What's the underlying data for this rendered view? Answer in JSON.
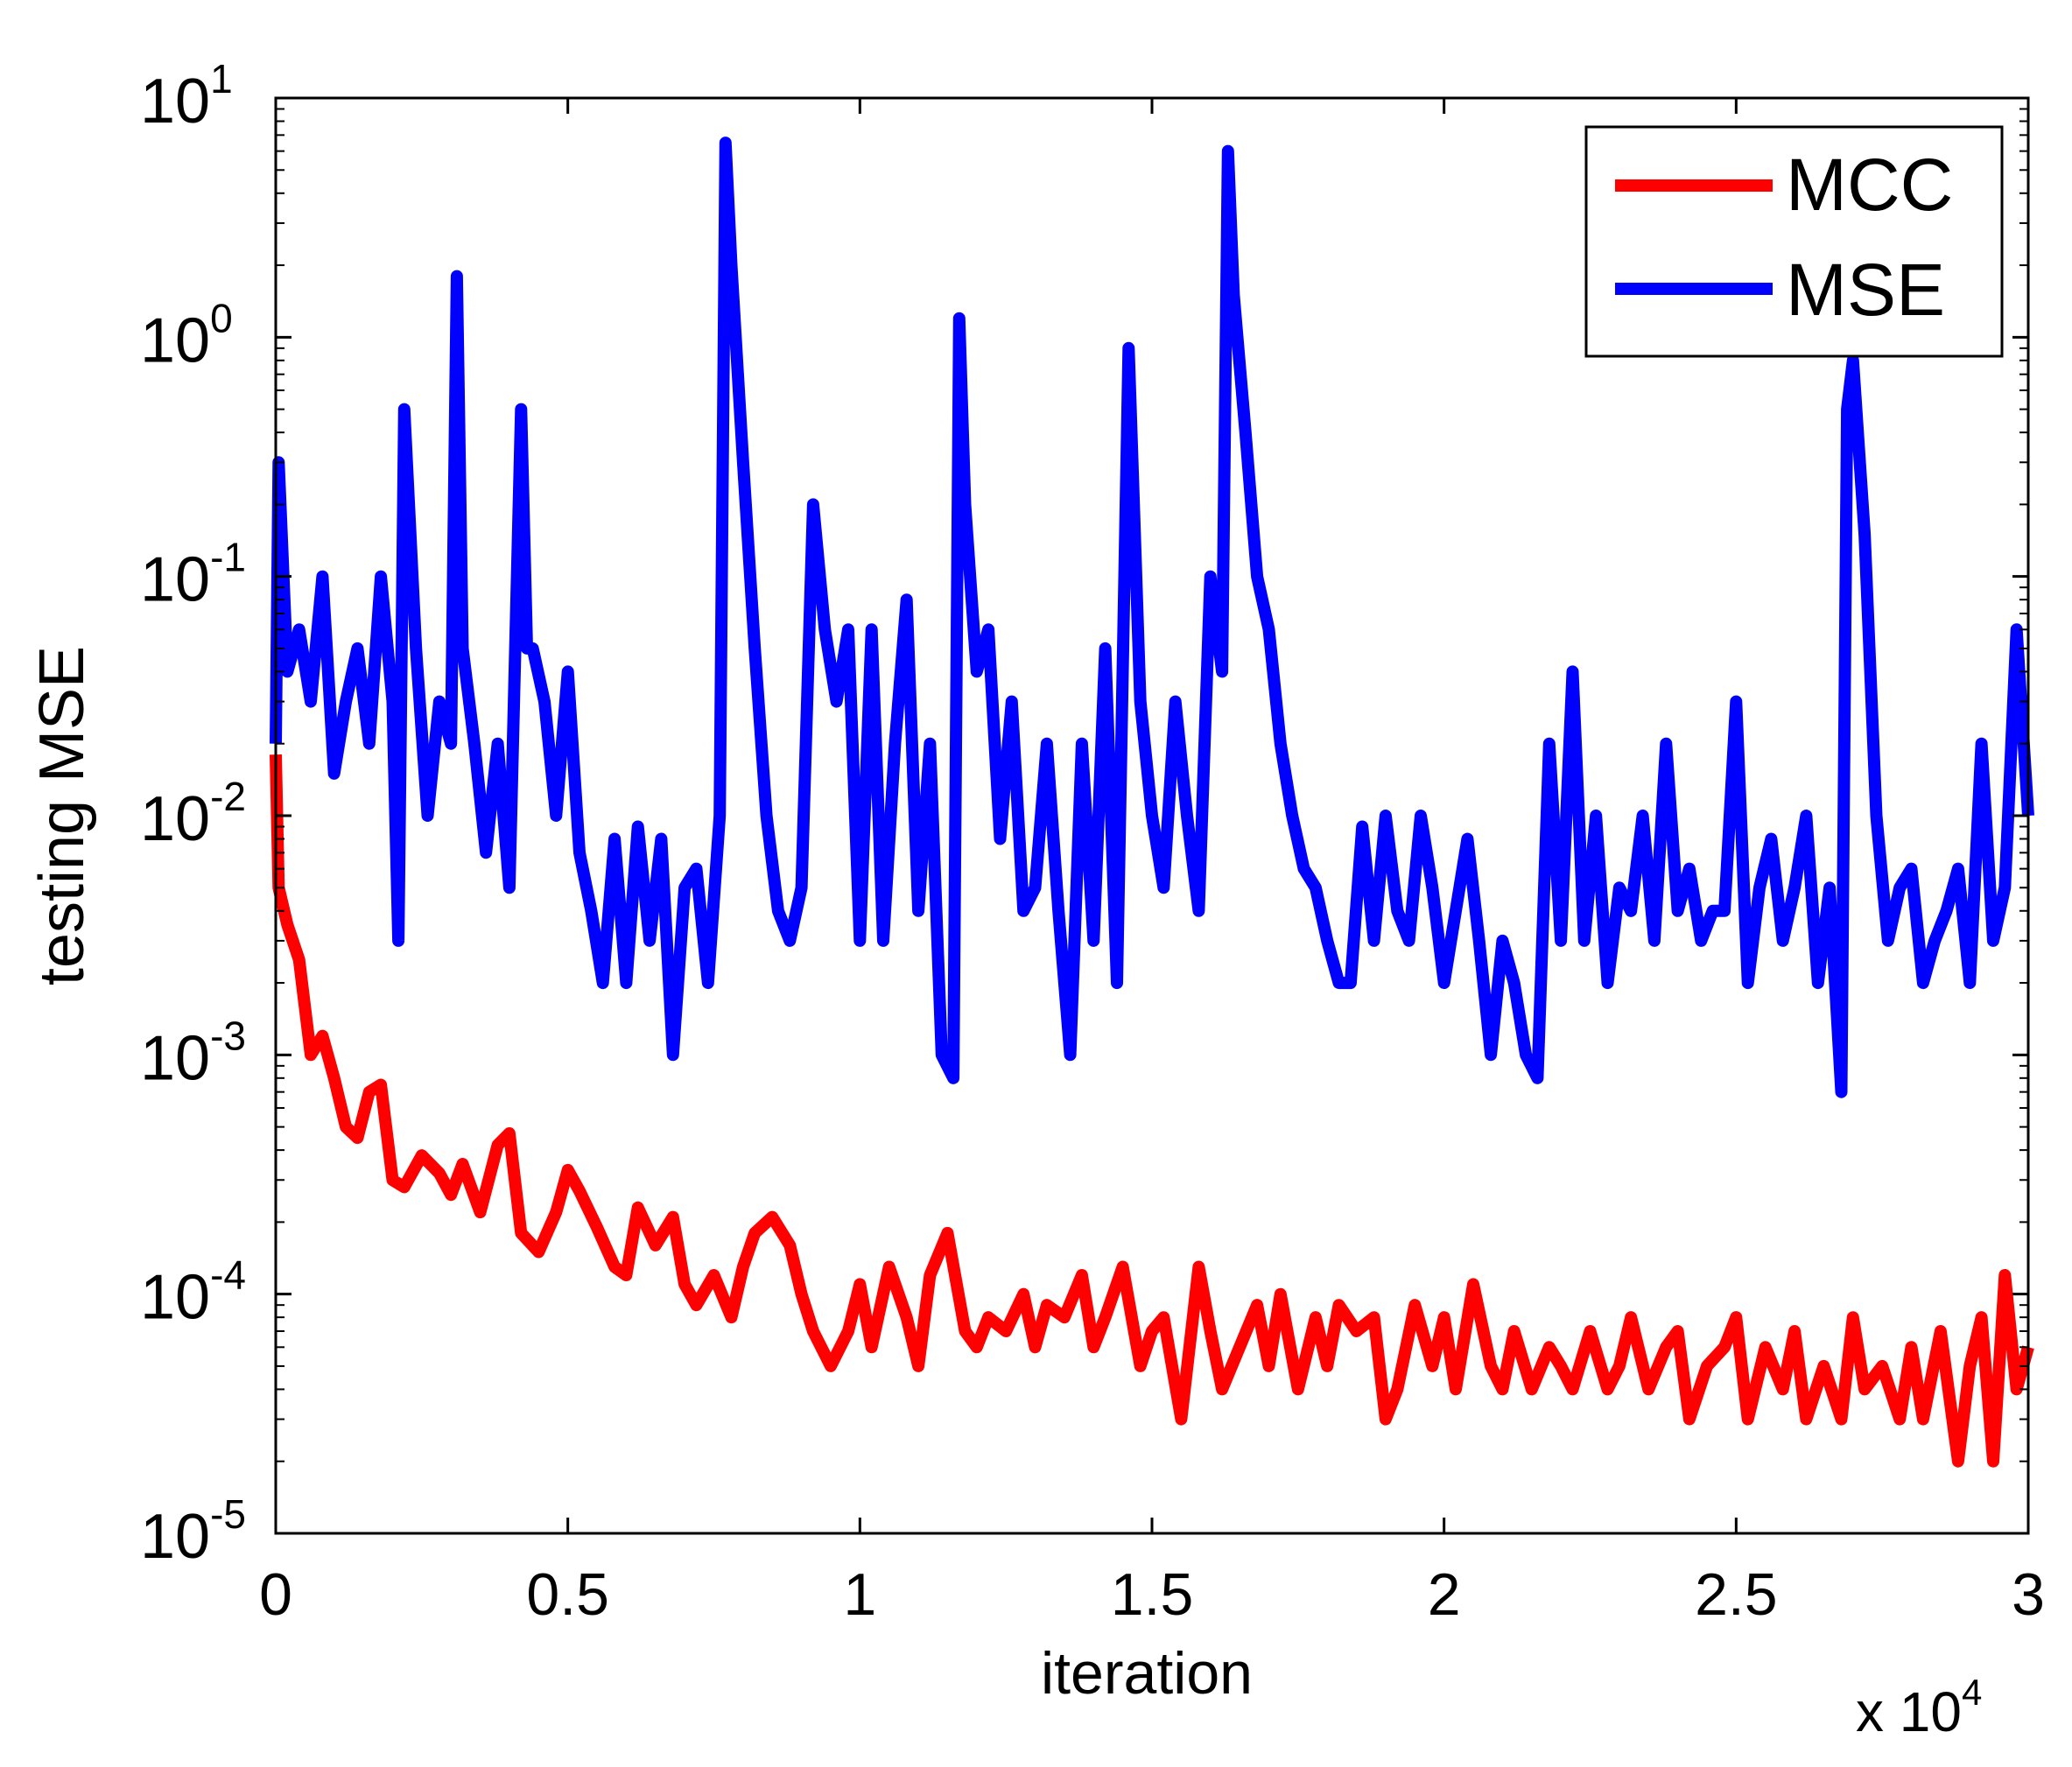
{
  "chart_data": {
    "type": "line",
    "title": "",
    "xlabel": "iteration",
    "ylabel": "testing MSE",
    "x_multiplier": "x 10",
    "x_multiplier_exp": "4",
    "xlim": [
      0,
      3
    ],
    "ylim_log10": [
      -5,
      1
    ],
    "yscale": "log",
    "grid": false,
    "legend_position": "top-right",
    "x_ticks": [
      {
        "value": 0,
        "label": "0"
      },
      {
        "value": 0.5,
        "label": "0.5"
      },
      {
        "value": 1,
        "label": "1"
      },
      {
        "value": 1.5,
        "label": "1.5"
      },
      {
        "value": 2,
        "label": "2"
      },
      {
        "value": 2.5,
        "label": "2.5"
      },
      {
        "value": 3,
        "label": "3"
      }
    ],
    "y_ticks": [
      {
        "exp": 1,
        "base": "10",
        "sup": "1"
      },
      {
        "exp": 0,
        "base": "10",
        "sup": "0"
      },
      {
        "exp": -1,
        "base": "10",
        "sup": "-1"
      },
      {
        "exp": -2,
        "base": "10",
        "sup": "-2"
      },
      {
        "exp": -3,
        "base": "10",
        "sup": "-3"
      },
      {
        "exp": -4,
        "base": "10",
        "sup": "-4"
      },
      {
        "exp": -5,
        "base": "10",
        "sup": "-5"
      }
    ],
    "series": [
      {
        "name": "MCC",
        "color": "#ff0000",
        "x": [
          0,
          0.005,
          0.02,
          0.04,
          0.06,
          0.08,
          0.1,
          0.12,
          0.14,
          0.16,
          0.18,
          0.2,
          0.22,
          0.25,
          0.28,
          0.3,
          0.32,
          0.35,
          0.38,
          0.4,
          0.42,
          0.45,
          0.48,
          0.5,
          0.52,
          0.55,
          0.58,
          0.6,
          0.62,
          0.65,
          0.68,
          0.7,
          0.72,
          0.75,
          0.78,
          0.8,
          0.82,
          0.85,
          0.88,
          0.9,
          0.92,
          0.95,
          0.98,
          1.0,
          1.02,
          1.05,
          1.08,
          1.1,
          1.12,
          1.15,
          1.18,
          1.2,
          1.22,
          1.25,
          1.28,
          1.3,
          1.32,
          1.35,
          1.38,
          1.4,
          1.42,
          1.45,
          1.48,
          1.5,
          1.52,
          1.55,
          1.58,
          1.6,
          1.62,
          1.65,
          1.68,
          1.7,
          1.72,
          1.75,
          1.78,
          1.8,
          1.82,
          1.85,
          1.88,
          1.9,
          1.92,
          1.95,
          1.98,
          2.0,
          2.02,
          2.05,
          2.08,
          2.1,
          2.12,
          2.15,
          2.18,
          2.2,
          2.22,
          2.25,
          2.28,
          2.3,
          2.32,
          2.35,
          2.38,
          2.4,
          2.42,
          2.45,
          2.48,
          2.5,
          2.52,
          2.55,
          2.58,
          2.6,
          2.62,
          2.65,
          2.68,
          2.7,
          2.72,
          2.75,
          2.78,
          2.8,
          2.82,
          2.85,
          2.88,
          2.9,
          2.92,
          2.94,
          2.96,
          2.98,
          3.0
        ],
        "y": [
          0.018,
          0.005,
          0.0035,
          0.0025,
          0.001,
          0.0012,
          0.0008,
          0.0005,
          0.00045,
          0.0007,
          0.00075,
          0.0003,
          0.00028,
          0.00038,
          0.00032,
          0.00026,
          0.00035,
          0.00022,
          0.00042,
          0.00047,
          0.00018,
          0.00015,
          0.00022,
          0.00033,
          0.00027,
          0.00019,
          0.00013,
          0.00012,
          0.00023,
          0.00016,
          0.00021,
          0.00011,
          9e-05,
          0.00012,
          8e-05,
          0.00013,
          0.00018,
          0.00021,
          0.00016,
          0.0001,
          7e-05,
          5e-05,
          7e-05,
          0.00011,
          6e-05,
          0.00013,
          8e-05,
          5e-05,
          0.00012,
          0.00018,
          7e-05,
          6e-05,
          8e-05,
          7e-05,
          0.0001,
          6e-05,
          9e-05,
          8e-05,
          0.00012,
          6e-05,
          8e-05,
          0.00013,
          5e-05,
          7e-05,
          8e-05,
          3e-05,
          0.00013,
          7e-05,
          4e-05,
          6e-05,
          9e-05,
          5e-05,
          0.0001,
          4e-05,
          8e-05,
          5e-05,
          9e-05,
          7e-05,
          8e-05,
          3e-05,
          4e-05,
          9e-05,
          5e-05,
          8e-05,
          4e-05,
          0.00011,
          5e-05,
          4e-05,
          7e-05,
          4e-05,
          6e-05,
          5e-05,
          4e-05,
          7e-05,
          4e-05,
          5e-05,
          8e-05,
          4e-05,
          6e-05,
          7e-05,
          3e-05,
          5e-05,
          6e-05,
          8e-05,
          3e-05,
          6e-05,
          4e-05,
          7e-05,
          3e-05,
          5e-05,
          3e-05,
          8e-05,
          4e-05,
          5e-05,
          3e-05,
          6e-05,
          3e-05,
          7e-05,
          2e-05,
          5e-05,
          8e-05,
          2e-05,
          0.00012,
          4e-05,
          6e-05
        ]
      },
      {
        "name": "MSE",
        "color": "#0000ff",
        "x": [
          0,
          0.005,
          0.02,
          0.04,
          0.06,
          0.08,
          0.1,
          0.12,
          0.14,
          0.16,
          0.18,
          0.2,
          0.21,
          0.22,
          0.24,
          0.26,
          0.28,
          0.3,
          0.31,
          0.32,
          0.34,
          0.36,
          0.38,
          0.4,
          0.42,
          0.43,
          0.44,
          0.46,
          0.48,
          0.5,
          0.52,
          0.54,
          0.56,
          0.58,
          0.6,
          0.62,
          0.64,
          0.66,
          0.68,
          0.7,
          0.72,
          0.74,
          0.76,
          0.77,
          0.78,
          0.8,
          0.82,
          0.84,
          0.86,
          0.88,
          0.9,
          0.92,
          0.94,
          0.96,
          0.98,
          1.0,
          1.02,
          1.04,
          1.06,
          1.08,
          1.1,
          1.12,
          1.14,
          1.16,
          1.17,
          1.18,
          1.2,
          1.22,
          1.24,
          1.26,
          1.28,
          1.3,
          1.32,
          1.34,
          1.36,
          1.38,
          1.4,
          1.42,
          1.44,
          1.46,
          1.48,
          1.5,
          1.52,
          1.54,
          1.56,
          1.58,
          1.6,
          1.62,
          1.63,
          1.64,
          1.66,
          1.68,
          1.7,
          1.72,
          1.74,
          1.76,
          1.78,
          1.8,
          1.82,
          1.84,
          1.86,
          1.88,
          1.9,
          1.92,
          1.94,
          1.96,
          1.98,
          2.0,
          2.02,
          2.04,
          2.06,
          2.08,
          2.1,
          2.12,
          2.14,
          2.16,
          2.18,
          2.2,
          2.22,
          2.24,
          2.26,
          2.28,
          2.3,
          2.32,
          2.34,
          2.36,
          2.38,
          2.4,
          2.42,
          2.44,
          2.46,
          2.48,
          2.5,
          2.52,
          2.54,
          2.56,
          2.58,
          2.6,
          2.62,
          2.64,
          2.66,
          2.68,
          2.69,
          2.7,
          2.72,
          2.74,
          2.76,
          2.78,
          2.8,
          2.82,
          2.84,
          2.86,
          2.88,
          2.9,
          2.92,
          2.94,
          2.96,
          2.98,
          3.0
        ],
        "y": [
          0.02,
          0.3,
          0.04,
          0.06,
          0.03,
          0.1,
          0.015,
          0.03,
          0.05,
          0.02,
          0.1,
          0.03,
          0.003,
          0.5,
          0.05,
          0.01,
          0.03,
          0.02,
          1.8,
          0.05,
          0.02,
          0.007,
          0.02,
          0.005,
          0.5,
          0.05,
          0.05,
          0.03,
          0.01,
          0.04,
          0.007,
          0.004,
          0.002,
          0.008,
          0.002,
          0.009,
          0.003,
          0.008,
          0.001,
          0.005,
          0.006,
          0.002,
          0.01,
          6.5,
          2.0,
          0.3,
          0.05,
          0.01,
          0.004,
          0.003,
          0.005,
          0.2,
          0.06,
          0.03,
          0.06,
          0.003,
          0.06,
          0.003,
          0.02,
          0.08,
          0.004,
          0.02,
          0.001,
          0.0008,
          1.2,
          0.2,
          0.04,
          0.06,
          0.008,
          0.03,
          0.004,
          0.005,
          0.02,
          0.004,
          0.001,
          0.02,
          0.003,
          0.05,
          0.002,
          0.9,
          0.03,
          0.01,
          0.005,
          0.03,
          0.01,
          0.004,
          0.1,
          0.04,
          6.0,
          1.5,
          0.4,
          0.1,
          0.06,
          0.02,
          0.01,
          0.006,
          0.005,
          0.003,
          0.002,
          0.002,
          0.009,
          0.003,
          0.01,
          0.004,
          0.003,
          0.01,
          0.005,
          0.002,
          0.004,
          0.008,
          0.003,
          0.001,
          0.003,
          0.002,
          0.001,
          0.0008,
          0.02,
          0.003,
          0.04,
          0.003,
          0.01,
          0.002,
          0.005,
          0.004,
          0.01,
          0.003,
          0.02,
          0.004,
          0.006,
          0.003,
          0.004,
          0.004,
          0.03,
          0.002,
          0.005,
          0.008,
          0.003,
          0.005,
          0.01,
          0.002,
          0.005,
          0.0007,
          0.5,
          0.8,
          0.15,
          0.01,
          0.003,
          0.005,
          0.006,
          0.002,
          0.003,
          0.004,
          0.006,
          0.002,
          0.02,
          0.003,
          0.005,
          0.06,
          0.01
        ]
      }
    ]
  }
}
